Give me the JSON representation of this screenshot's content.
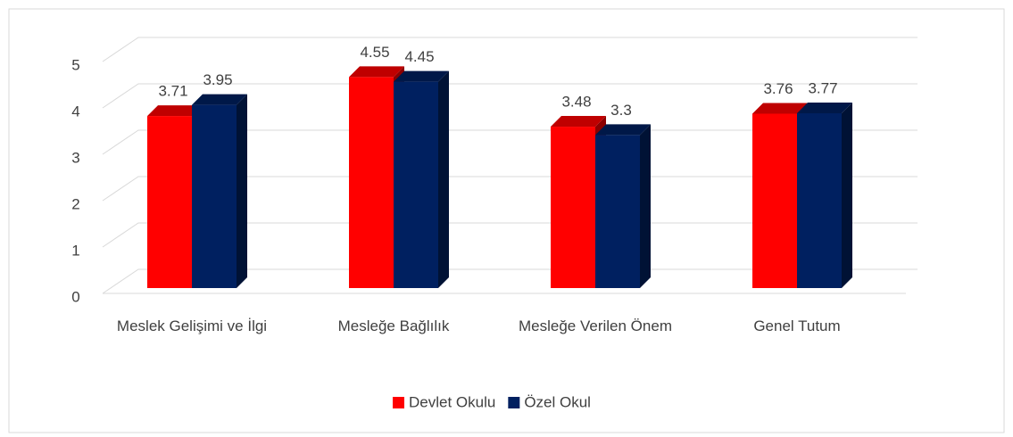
{
  "chart_data": {
    "type": "bar3d",
    "categories": [
      "Meslek Gelişimi ve İlgi",
      "Mesleğe Bağlılık",
      "Mesleğe Verilen Önem",
      "Genel Tutum"
    ],
    "series": [
      {
        "name": "Devlet Okulu",
        "color": "#ff0000",
        "values": [
          3.71,
          4.55,
          3.48,
          3.76
        ]
      },
      {
        "name": "Özel Okul",
        "color": "#002060",
        "values": [
          3.95,
          4.45,
          3.3,
          3.77
        ]
      }
    ],
    "ylim": [
      0,
      5
    ],
    "yticks": [
      0,
      1,
      2,
      3,
      4,
      5
    ],
    "grid": true,
    "legend": "bottom"
  }
}
